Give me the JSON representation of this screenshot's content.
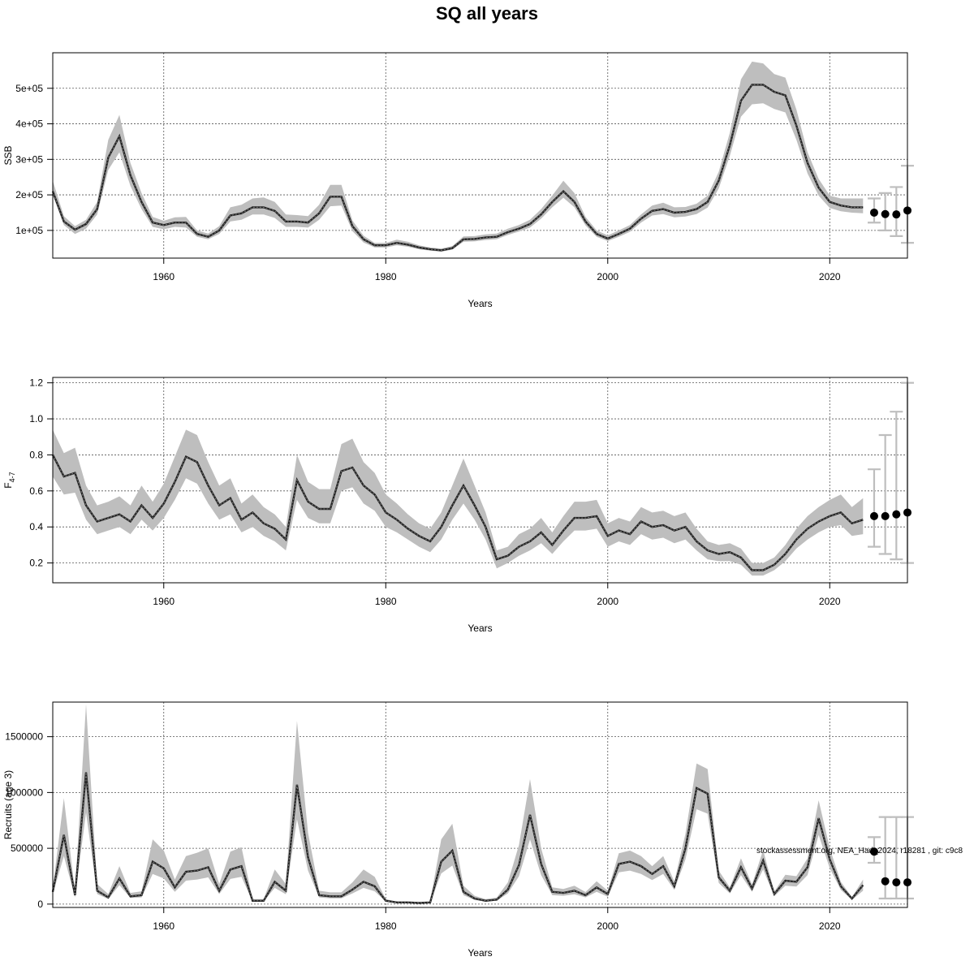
{
  "title": "SQ all years",
  "footnote": "stockassessment.org, NEA_Had_2024, r18281 , git: c9c8",
  "colors": {
    "band": "#bebebe",
    "line": "#000000",
    "forecast": "#bebebe",
    "grid": "#555555"
  },
  "chart_data": [
    {
      "type": "line",
      "ylabel": "SSB",
      "xlabel": "Years",
      "xlim": [
        1950,
        2027
      ],
      "ylim": [
        22000,
        600000
      ],
      "xticks": [
        1960,
        1980,
        2000,
        2020
      ],
      "yticks": [
        100000,
        200000,
        300000,
        400000,
        500000
      ],
      "ytick_labels": [
        "1e+05",
        "2e+05",
        "3e+05",
        "4e+05",
        "5e+05"
      ],
      "grid": true,
      "x": [
        1950,
        1951,
        1952,
        1953,
        1954,
        1955,
        1956,
        1957,
        1958,
        1959,
        1960,
        1961,
        1962,
        1963,
        1964,
        1965,
        1966,
        1967,
        1968,
        1969,
        1970,
        1971,
        1972,
        1973,
        1974,
        1975,
        1976,
        1977,
        1978,
        1979,
        1980,
        1981,
        1982,
        1983,
        1984,
        1985,
        1986,
        1987,
        1988,
        1989,
        1990,
        1991,
        1992,
        1993,
        1994,
        1995,
        1996,
        1997,
        1998,
        1999,
        2000,
        2001,
        2002,
        2003,
        2004,
        2005,
        2006,
        2007,
        2008,
        2009,
        2010,
        2011,
        2012,
        2013,
        2014,
        2015,
        2016,
        2017,
        2018,
        2019,
        2020,
        2021,
        2022,
        2023
      ],
      "estimate": [
        210000,
        125000,
        102000,
        118000,
        160000,
        305000,
        365000,
        255000,
        180000,
        122000,
        115000,
        122000,
        122000,
        90000,
        82000,
        100000,
        142000,
        148000,
        165000,
        165000,
        155000,
        125000,
        125000,
        122000,
        148000,
        195000,
        195000,
        112000,
        75000,
        58000,
        58000,
        65000,
        60000,
        52000,
        47000,
        44000,
        50000,
        75000,
        76000,
        80000,
        82000,
        95000,
        105000,
        118000,
        145000,
        180000,
        210000,
        180000,
        125000,
        90000,
        77000,
        90000,
        105000,
        133000,
        155000,
        160000,
        150000,
        152000,
        160000,
        180000,
        240000,
        340000,
        465000,
        510000,
        510000,
        490000,
        480000,
        395000,
        290000,
        220000,
        180000,
        170000,
        165000,
        165000
      ],
      "lower": [
        200000,
        115000,
        90000,
        105000,
        145000,
        270000,
        320000,
        225000,
        160000,
        110000,
        103000,
        110000,
        108000,
        82000,
        75000,
        90000,
        125000,
        130000,
        145000,
        145000,
        135000,
        110000,
        110000,
        108000,
        130000,
        168000,
        170000,
        98000,
        66000,
        52000,
        52000,
        58000,
        54000,
        47000,
        43000,
        40000,
        46000,
        68000,
        69000,
        73000,
        75000,
        87000,
        97000,
        108000,
        133000,
        165000,
        192000,
        165000,
        114000,
        82000,
        70000,
        82000,
        96000,
        122000,
        142000,
        146000,
        137000,
        139000,
        146000,
        164000,
        218000,
        310000,
        420000,
        455000,
        458000,
        442000,
        432000,
        355000,
        260000,
        198000,
        163000,
        154000,
        150000,
        148000
      ],
      "upper": [
        240000,
        140000,
        112000,
        130000,
        180000,
        355000,
        425000,
        290000,
        205000,
        138000,
        127000,
        137000,
        138000,
        100000,
        91000,
        112000,
        165000,
        172000,
        190000,
        193000,
        180000,
        145000,
        143000,
        140000,
        172000,
        228000,
        228000,
        128000,
        85000,
        65000,
        65000,
        74000,
        68000,
        58000,
        52000,
        49000,
        56000,
        83000,
        84000,
        89000,
        91000,
        105000,
        115000,
        130000,
        160000,
        198000,
        240000,
        205000,
        138000,
        100000,
        86000,
        100000,
        115000,
        145000,
        170000,
        178000,
        165000,
        166000,
        175000,
        198000,
        265000,
        375000,
        525000,
        575000,
        570000,
        540000,
        530000,
        440000,
        320000,
        245000,
        198000,
        190000,
        190000,
        190000
      ],
      "forecast": {
        "x": [
          2024,
          2025,
          2026,
          2027
        ],
        "median": [
          150000,
          146000,
          145000,
          156000
        ],
        "lower": [
          122000,
          100000,
          84000,
          65000
        ],
        "upper": [
          190000,
          205000,
          222000,
          282000
        ]
      }
    },
    {
      "type": "line",
      "ylabel": "F",
      "ylabel_sub": "4-7",
      "xlabel": "Years",
      "xlim": [
        1950,
        2027
      ],
      "ylim": [
        0.09,
        1.23
      ],
      "xticks": [
        1960,
        1980,
        2000,
        2020
      ],
      "yticks": [
        0.2,
        0.4,
        0.6,
        0.8,
        1.0,
        1.2
      ],
      "ytick_labels": [
        "0.2",
        "0.4",
        "0.6",
        "0.8",
        "1.0",
        "1.2"
      ],
      "grid": true,
      "x": [
        1950,
        1951,
        1952,
        1953,
        1954,
        1955,
        1956,
        1957,
        1958,
        1959,
        1960,
        1961,
        1962,
        1963,
        1964,
        1965,
        1966,
        1967,
        1968,
        1969,
        1970,
        1971,
        1972,
        1973,
        1974,
        1975,
        1976,
        1977,
        1978,
        1979,
        1980,
        1981,
        1982,
        1983,
        1984,
        1985,
        1986,
        1987,
        1988,
        1989,
        1990,
        1991,
        1992,
        1993,
        1994,
        1995,
        1996,
        1997,
        1998,
        1999,
        2000,
        2001,
        2002,
        2003,
        2004,
        2005,
        2006,
        2007,
        2008,
        2009,
        2010,
        2011,
        2012,
        2013,
        2014,
        2015,
        2016,
        2017,
        2018,
        2019,
        2020,
        2021,
        2022,
        2023
      ],
      "estimate": [
        0.8,
        0.68,
        0.7,
        0.52,
        0.43,
        0.45,
        0.47,
        0.43,
        0.52,
        0.45,
        0.53,
        0.65,
        0.79,
        0.76,
        0.63,
        0.52,
        0.56,
        0.44,
        0.48,
        0.42,
        0.39,
        0.33,
        0.66,
        0.54,
        0.5,
        0.5,
        0.71,
        0.73,
        0.63,
        0.58,
        0.48,
        0.44,
        0.39,
        0.35,
        0.32,
        0.4,
        0.52,
        0.63,
        0.52,
        0.4,
        0.22,
        0.24,
        0.29,
        0.32,
        0.37,
        0.3,
        0.38,
        0.45,
        0.45,
        0.46,
        0.35,
        0.38,
        0.36,
        0.43,
        0.4,
        0.41,
        0.38,
        0.4,
        0.32,
        0.27,
        0.25,
        0.26,
        0.23,
        0.16,
        0.16,
        0.19,
        0.25,
        0.33,
        0.39,
        0.43,
        0.46,
        0.48,
        0.42,
        0.44
      ],
      "lower": [
        0.68,
        0.58,
        0.59,
        0.44,
        0.36,
        0.38,
        0.4,
        0.36,
        0.44,
        0.38,
        0.45,
        0.55,
        0.67,
        0.64,
        0.53,
        0.44,
        0.47,
        0.37,
        0.4,
        0.35,
        0.32,
        0.27,
        0.55,
        0.45,
        0.42,
        0.42,
        0.6,
        0.62,
        0.53,
        0.49,
        0.4,
        0.37,
        0.33,
        0.29,
        0.26,
        0.33,
        0.44,
        0.53,
        0.44,
        0.33,
        0.17,
        0.2,
        0.24,
        0.27,
        0.31,
        0.25,
        0.32,
        0.38,
        0.38,
        0.39,
        0.29,
        0.32,
        0.3,
        0.36,
        0.33,
        0.34,
        0.31,
        0.33,
        0.27,
        0.22,
        0.21,
        0.21,
        0.19,
        0.13,
        0.13,
        0.16,
        0.21,
        0.28,
        0.33,
        0.37,
        0.4,
        0.41,
        0.35,
        0.36
      ],
      "upper": [
        0.94,
        0.81,
        0.84,
        0.63,
        0.52,
        0.54,
        0.57,
        0.52,
        0.63,
        0.54,
        0.64,
        0.79,
        0.94,
        0.91,
        0.76,
        0.63,
        0.67,
        0.53,
        0.58,
        0.51,
        0.47,
        0.4,
        0.8,
        0.65,
        0.61,
        0.61,
        0.86,
        0.89,
        0.76,
        0.7,
        0.58,
        0.53,
        0.47,
        0.42,
        0.39,
        0.48,
        0.63,
        0.78,
        0.63,
        0.48,
        0.27,
        0.29,
        0.36,
        0.39,
        0.45,
        0.37,
        0.46,
        0.54,
        0.54,
        0.55,
        0.42,
        0.45,
        0.43,
        0.51,
        0.48,
        0.49,
        0.46,
        0.48,
        0.39,
        0.32,
        0.3,
        0.31,
        0.28,
        0.2,
        0.2,
        0.23,
        0.3,
        0.39,
        0.46,
        0.51,
        0.55,
        0.58,
        0.51,
        0.56
      ],
      "forecast": {
        "x": [
          2024,
          2025,
          2026,
          2027
        ],
        "median": [
          0.46,
          0.46,
          0.47,
          0.48
        ],
        "lower": [
          0.29,
          0.25,
          0.22,
          0.2
        ],
        "upper": [
          0.72,
          0.91,
          1.04,
          1.2
        ]
      }
    },
    {
      "type": "line",
      "ylabel": "Recruits (age 3)",
      "xlabel": "Years",
      "xlim": [
        1950,
        2027
      ],
      "ylim": [
        -30000,
        1810000
      ],
      "xticks": [
        1960,
        1980,
        2000,
        2020
      ],
      "yticks": [
        0,
        500000,
        1000000,
        1500000
      ],
      "ytick_labels": [
        "0",
        "500000",
        "1000000",
        "1500000"
      ],
      "grid": true,
      "x": [
        1950,
        1951,
        1952,
        1953,
        1954,
        1955,
        1956,
        1957,
        1958,
        1959,
        1960,
        1961,
        1962,
        1963,
        1964,
        1965,
        1966,
        1967,
        1968,
        1969,
        1970,
        1971,
        1972,
        1973,
        1974,
        1975,
        1976,
        1977,
        1978,
        1979,
        1980,
        1981,
        1982,
        1983,
        1984,
        1985,
        1986,
        1987,
        1988,
        1989,
        1990,
        1991,
        1992,
        1993,
        1994,
        1995,
        1996,
        1997,
        1998,
        1999,
        2000,
        2001,
        2002,
        2003,
        2004,
        2005,
        2006,
        2007,
        2008,
        2009,
        2010,
        2011,
        2012,
        2013,
        2014,
        2015,
        2016,
        2017,
        2018,
        2019,
        2020,
        2021,
        2022,
        2023
      ],
      "estimate": [
        110000,
        620000,
        80000,
        1180000,
        120000,
        60000,
        230000,
        70000,
        80000,
        380000,
        320000,
        150000,
        290000,
        300000,
        330000,
        120000,
        310000,
        340000,
        30000,
        30000,
        200000,
        120000,
        1070000,
        420000,
        80000,
        70000,
        70000,
        130000,
        200000,
        160000,
        30000,
        15000,
        15000,
        10000,
        15000,
        380000,
        480000,
        110000,
        50000,
        30000,
        40000,
        130000,
        350000,
        800000,
        360000,
        110000,
        100000,
        120000,
        80000,
        150000,
        90000,
        360000,
        380000,
        340000,
        270000,
        340000,
        160000,
        500000,
        1040000,
        990000,
        240000,
        120000,
        330000,
        140000,
        390000,
        90000,
        210000,
        200000,
        330000,
        770000,
        400000,
        160000,
        50000,
        170000
      ],
      "lower": [
        90000,
        430000,
        60000,
        820000,
        90000,
        45000,
        170000,
        55000,
        60000,
        270000,
        230000,
        110000,
        210000,
        220000,
        240000,
        90000,
        225000,
        245000,
        22000,
        22000,
        145000,
        88000,
        760000,
        300000,
        60000,
        52000,
        52000,
        95000,
        145000,
        115000,
        22000,
        11000,
        11000,
        7000,
        11000,
        275000,
        345000,
        80000,
        37000,
        22000,
        30000,
        95000,
        250000,
        580000,
        260000,
        80000,
        75000,
        88000,
        60000,
        110000,
        67000,
        285000,
        300000,
        270000,
        215000,
        270000,
        127000,
        400000,
        850000,
        810000,
        190000,
        95000,
        260000,
        110000,
        310000,
        70000,
        165000,
        158000,
        260000,
        620000,
        320000,
        127000,
        38000,
        120000
      ],
      "upper": [
        140000,
        950000,
        110000,
        1790000,
        180000,
        90000,
        340000,
        100000,
        115000,
        580000,
        480000,
        220000,
        430000,
        460000,
        500000,
        180000,
        470000,
        510000,
        45000,
        45000,
        310000,
        180000,
        1640000,
        640000,
        120000,
        105000,
        105000,
        195000,
        310000,
        245000,
        45000,
        22000,
        22000,
        15000,
        22000,
        580000,
        720000,
        165000,
        75000,
        45000,
        58000,
        195000,
        530000,
        1120000,
        500000,
        150000,
        135000,
        165000,
        108000,
        205000,
        120000,
        455000,
        480000,
        430000,
        340000,
        430000,
        202000,
        630000,
        1260000,
        1210000,
        300000,
        150000,
        410000,
        175000,
        485000,
        112000,
        262000,
        250000,
        410000,
        930000,
        500000,
        200000,
        63000,
        220000
      ],
      "forecast": {
        "x": [
          2024,
          2025,
          2026,
          2027
        ],
        "median": [
          470000,
          205000,
          195000,
          195000
        ],
        "lower": [
          370000,
          50000,
          50000,
          50000
        ],
        "upper": [
          600000,
          780000,
          780000,
          780000
        ]
      }
    }
  ]
}
